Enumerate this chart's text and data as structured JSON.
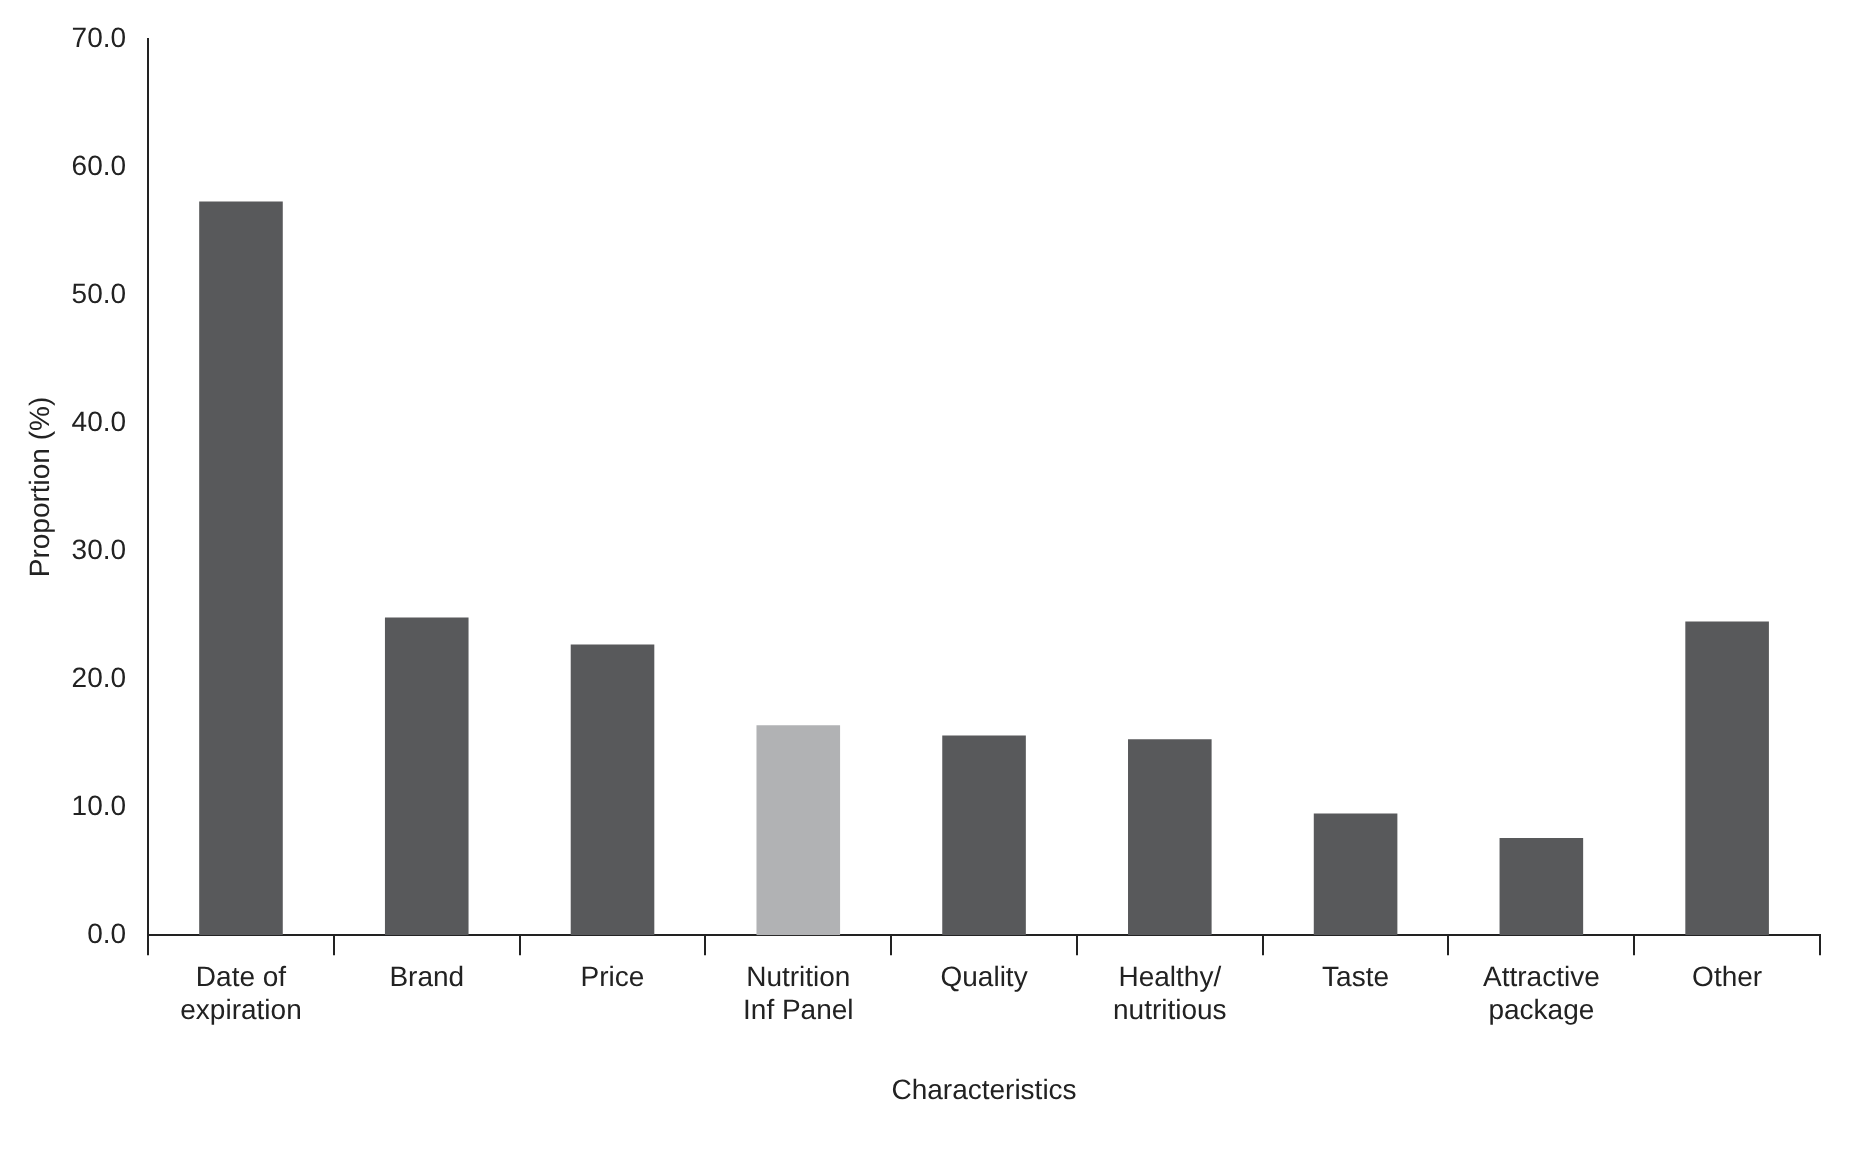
{
  "chart_data": {
    "type": "bar",
    "xlabel": "Characteristics",
    "ylabel": "Proportion (%)",
    "categories": [
      "Date of expiration",
      "Brand",
      "Price",
      "Nutrition Inf Panel",
      "Quality",
      "Healthy/ nutritious",
      "Taste",
      "Attractive package",
      "Other"
    ],
    "values": [
      57.3,
      24.8,
      22.7,
      16.4,
      15.6,
      15.3,
      9.5,
      7.6,
      24.5
    ],
    "colors": [
      "#58595b",
      "#58595b",
      "#58595b",
      "#b1b2b4",
      "#58595b",
      "#58595b",
      "#58595b",
      "#58595b",
      "#58595b"
    ],
    "ylim": [
      0,
      70
    ],
    "yticks": [
      {
        "value": 0,
        "label": "0.0"
      },
      {
        "value": 10,
        "label": "10.0"
      },
      {
        "value": 20,
        "label": "20.0"
      },
      {
        "value": 30,
        "label": "30.0"
      },
      {
        "value": 40,
        "label": "40.0"
      },
      {
        "value": 50,
        "label": "50.0"
      },
      {
        "value": 60,
        "label": "60.0"
      },
      {
        "value": 70,
        "label": "70.0"
      }
    ],
    "grid": false,
    "legend": false
  }
}
